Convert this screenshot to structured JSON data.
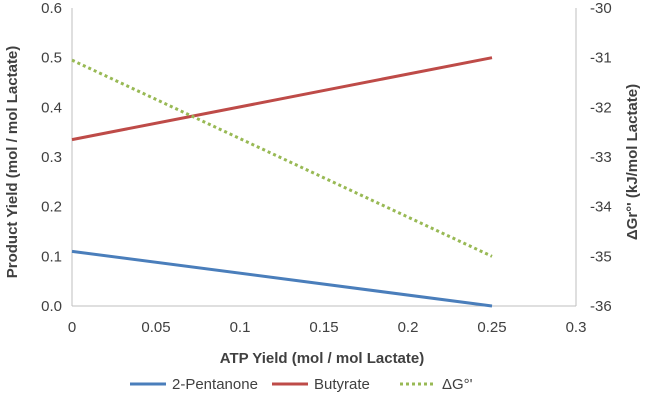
{
  "chart_data": {
    "type": "line",
    "title": "",
    "xlabel": "ATP Yield (mol / mol Lactate)",
    "ylabel": "Product Yield (mol / mol Lactate)",
    "y2label": "ΔGr°' (kJ/mol Lactate)",
    "xlim": [
      0,
      0.3
    ],
    "ylim": [
      0,
      0.6
    ],
    "y2lim": [
      -36,
      -30
    ],
    "x_ticks": [
      "0",
      "0.05",
      "0.1",
      "0.15",
      "0.2",
      "0.25",
      "0.3"
    ],
    "y_ticks": [
      "0.0",
      "0.1",
      "0.2",
      "0.3",
      "0.4",
      "0.5",
      "0.6"
    ],
    "y2_ticks": [
      "-36",
      "-35",
      "-34",
      "-33",
      "-32",
      "-31",
      "-30"
    ],
    "grid": false,
    "legend_position": "bottom",
    "series": [
      {
        "name": "2-Pentanone",
        "axis": "left",
        "color": "#4a7ebb",
        "style": "solid",
        "x": [
          0,
          0.25
        ],
        "values": [
          0.11,
          0.0
        ]
      },
      {
        "name": "Butyrate",
        "axis": "left",
        "color": "#be4b48",
        "style": "solid",
        "x": [
          0,
          0.25
        ],
        "values": [
          0.335,
          0.5
        ]
      },
      {
        "name": "ΔG°'",
        "axis": "right",
        "color": "#98b954",
        "style": "dotted",
        "x": [
          0,
          0.25
        ],
        "values": [
          -31.05,
          -35.0
        ]
      }
    ]
  }
}
